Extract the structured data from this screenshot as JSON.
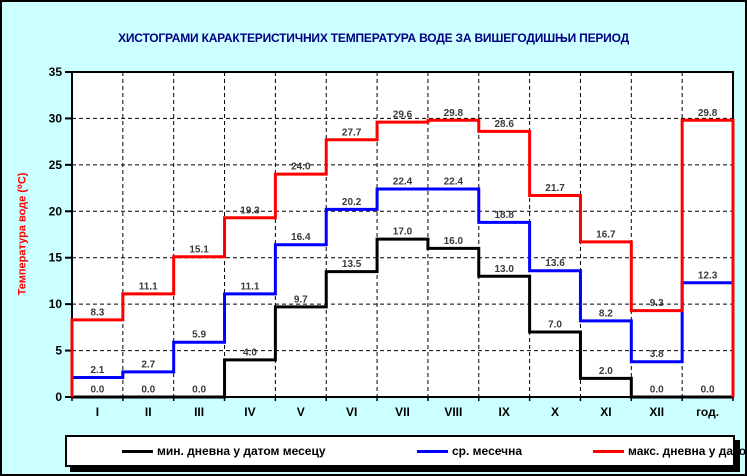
{
  "title": "ХИСТОГРАМИ КАРАКТЕРИСТИЧНИХ ТЕМПЕРАТУРА ВОДЕ ЗА ВИШЕГОДИШЊИ ПЕРИОД",
  "y_axis": {
    "label": "Температура воде (⁰C)",
    "min": 0,
    "max": 35,
    "step": 5,
    "ticks": [
      0,
      5,
      10,
      15,
      20,
      25,
      30,
      35
    ]
  },
  "x_axis": {
    "categories": [
      "I",
      "II",
      "III",
      "IV",
      "V",
      "VI",
      "VII",
      "VIII",
      "IX",
      "X",
      "XI",
      "XII",
      "год."
    ]
  },
  "legend": {
    "items": [
      {
        "label": "мин. дневна у датом месецу",
        "color": "#000000"
      },
      {
        "label": "ср. месечна",
        "color": "#0000FF"
      },
      {
        "label": "макс. дневна у датом месецу",
        "color": "#FF0000"
      }
    ]
  },
  "colors": {
    "background": "#CCFFFF",
    "plot_background": "#FFFFFF",
    "title": "#000080",
    "y_axis_title": "#FF0000",
    "grid": "#000000",
    "value_label": "#3a3a3a"
  },
  "chart_data": {
    "type": "line",
    "subtype": "step-histogram",
    "title": "ХИСТОГРАМИ КАРАКТЕРИСТИЧНИХ ТЕМПЕРАТУРА ВОДЕ ЗА ВИШЕГОДИШЊИ ПЕРИОД",
    "xlabel": "",
    "ylabel": "Температура воде (⁰C)",
    "ylim": [
      0,
      35
    ],
    "grid": true,
    "legend_position": "bottom",
    "categories": [
      "I",
      "II",
      "III",
      "IV",
      "V",
      "VI",
      "VII",
      "VIII",
      "IX",
      "X",
      "XI",
      "XII",
      "год."
    ],
    "series": [
      {
        "name": "мин. дневна у датом месецу",
        "key": "min",
        "color": "#000000",
        "values": [
          0.0,
          0.0,
          0.0,
          4.0,
          9.7,
          13.5,
          17.0,
          16.0,
          13.0,
          7.0,
          2.0,
          0.0,
          0.0
        ]
      },
      {
        "name": "ср. месечна",
        "key": "mean",
        "color": "#0000FF",
        "values": [
          2.1,
          2.7,
          5.9,
          11.1,
          16.4,
          20.2,
          22.4,
          22.4,
          18.8,
          13.6,
          8.2,
          3.8,
          12.3
        ]
      },
      {
        "name": "макс. дневна у датом месецу",
        "key": "max",
        "color": "#FF0000",
        "values": [
          8.3,
          11.1,
          15.1,
          19.3,
          24.0,
          27.7,
          29.6,
          29.8,
          28.6,
          21.7,
          16.7,
          9.3,
          29.8
        ]
      }
    ]
  }
}
